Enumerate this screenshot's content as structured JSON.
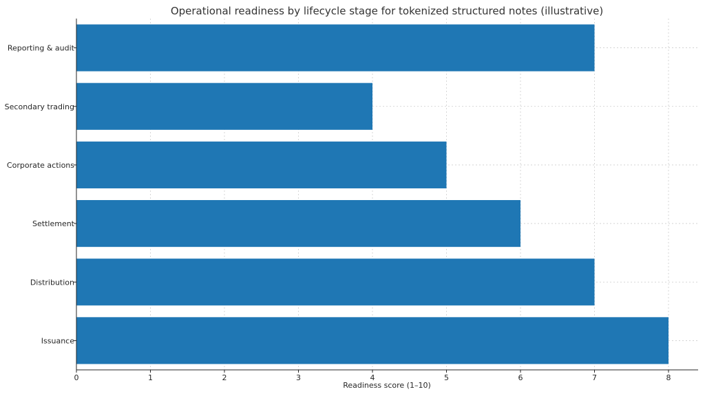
{
  "chart_data": {
    "type": "bar",
    "orientation": "horizontal",
    "title": "Operational readiness by lifecycle stage for tokenized structured notes (illustrative)",
    "xlabel": "Readiness score (1–10)",
    "ylabel": "",
    "categories": [
      "Issuance",
      "Distribution",
      "Settlement",
      "Corporate actions",
      "Secondary trading",
      "Reporting & audit"
    ],
    "values": [
      8,
      7,
      6,
      5,
      4,
      7
    ],
    "xlim": [
      0,
      8.4
    ],
    "xticks": [
      "0",
      "1",
      "2",
      "3",
      "4",
      "5",
      "6",
      "7",
      "8"
    ],
    "grid": true,
    "bar_color": "#1f77b4"
  }
}
